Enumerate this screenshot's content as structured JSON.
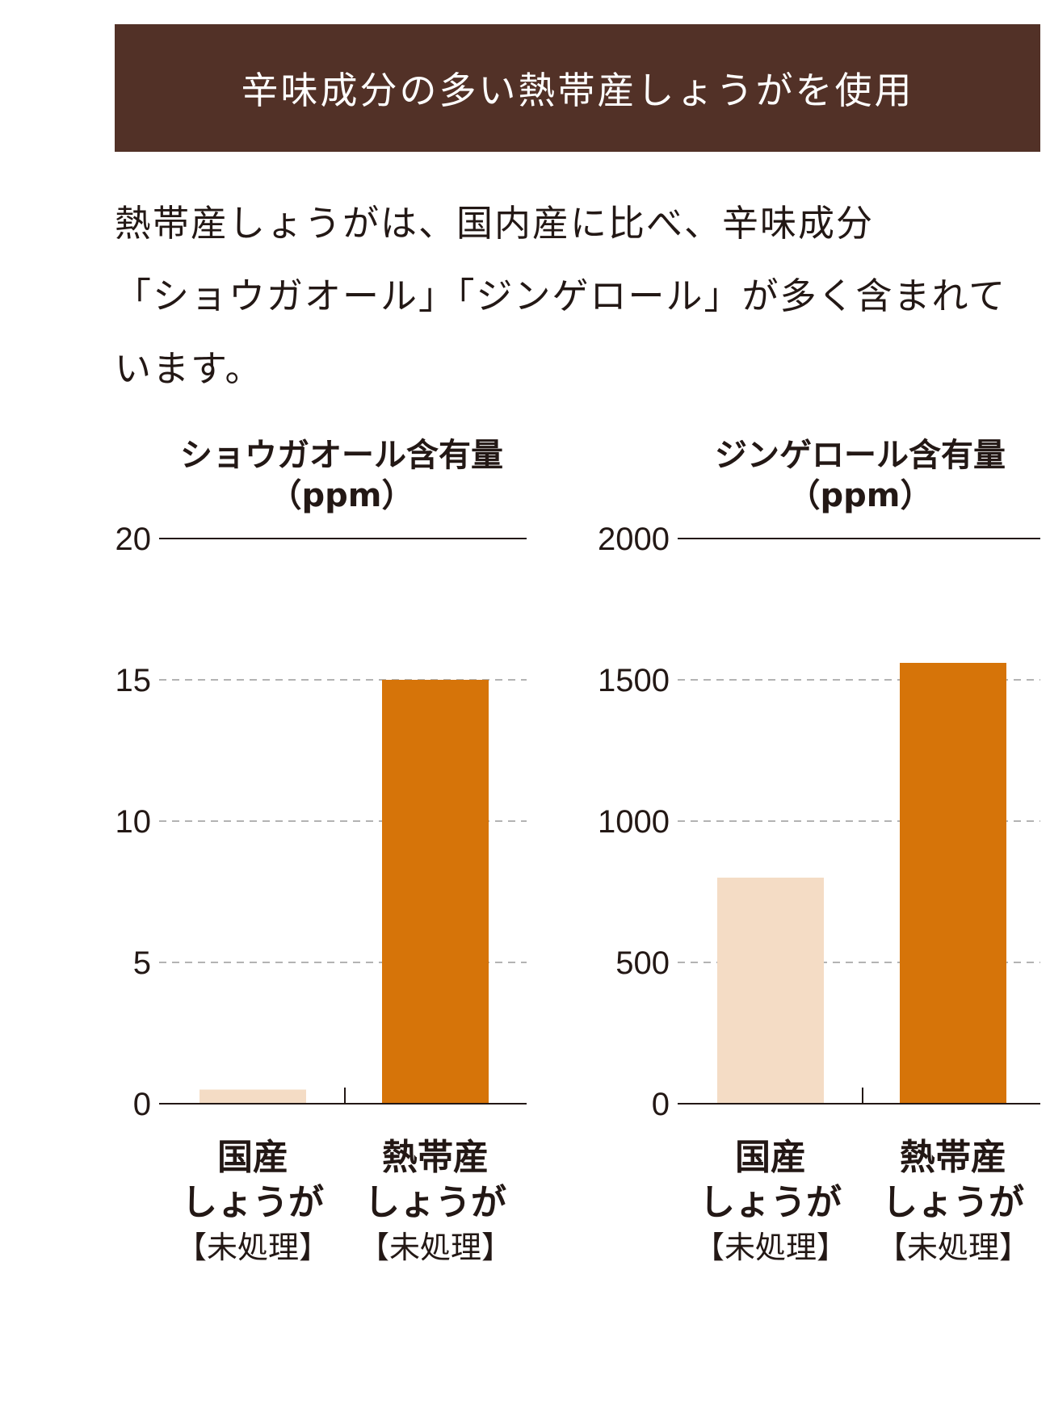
{
  "header": {
    "title": "辛味成分の多い熱帯産しょうがを使用"
  },
  "lead": {
    "lines": [
      "熱帯産しょうがは、国内産に比べ、辛味成分",
      "「ショウガオール」「ジンゲロール」が多く含まれて",
      "います。"
    ]
  },
  "colors": {
    "header_bg": "#523127",
    "domestic": "#f4dcc5",
    "tropical": "#d67409"
  },
  "chart_data": [
    {
      "type": "bar",
      "title": "ショウガオール含有量",
      "unit": "（ppm）",
      "ylim": [
        0,
        20
      ],
      "yticks": [
        "0",
        "5",
        "10",
        "15",
        "20"
      ],
      "grid": true,
      "categories": [
        {
          "lines": [
            "国産",
            "しょうが"
          ],
          "sub": "【未処理】"
        },
        {
          "lines": [
            "熱帯産",
            "しょうが"
          ],
          "sub": "【未処理】"
        }
      ],
      "values": [
        0.5,
        15
      ],
      "colors": [
        "#f4dcc5",
        "#d67409"
      ]
    },
    {
      "type": "bar",
      "title": "ジンゲロール含有量",
      "unit": "（ppm）",
      "ylim": [
        0,
        2000
      ],
      "yticks": [
        "0",
        "500",
        "1000",
        "1500",
        "2000"
      ],
      "grid": true,
      "categories": [
        {
          "lines": [
            "国産",
            "しょうが"
          ],
          "sub": "【未処理】"
        },
        {
          "lines": [
            "熱帯産",
            "しょうが"
          ],
          "sub": "【未処理】"
        }
      ],
      "values": [
        800,
        1560
      ],
      "colors": [
        "#f4dcc5",
        "#d67409"
      ]
    }
  ]
}
